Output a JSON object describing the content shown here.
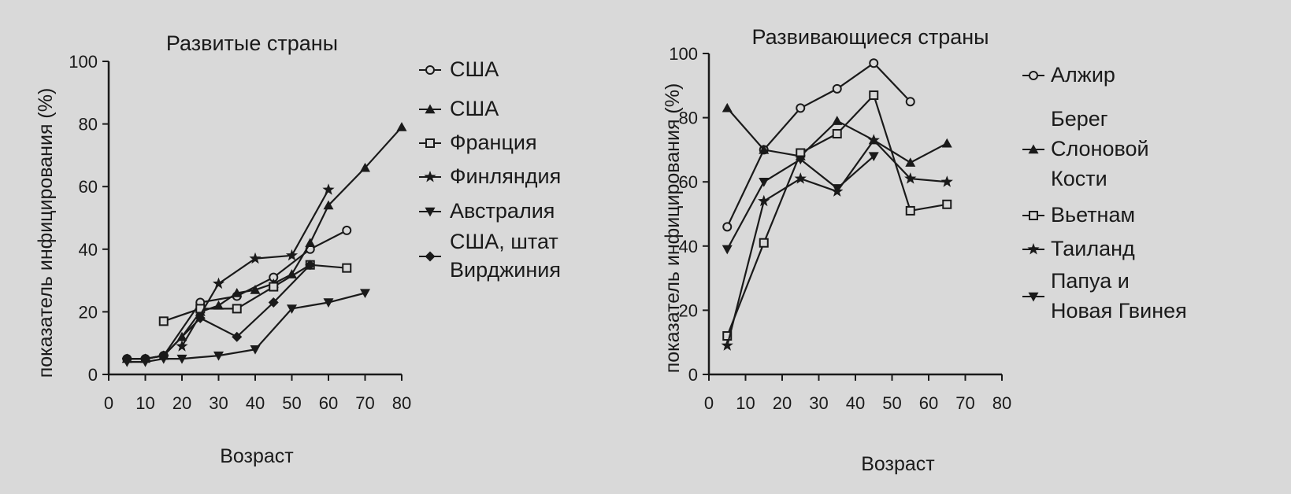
{
  "chart_data": [
    {
      "type": "line",
      "title": "Развитые страны",
      "xlabel": "Возраст",
      "ylabel": "показатель инфицирования (%)",
      "xlim": [
        0,
        80
      ],
      "ylim": [
        0,
        100
      ],
      "x_ticks": [
        0,
        10,
        20,
        30,
        40,
        50,
        60,
        70,
        80
      ],
      "y_ticks": [
        0,
        20,
        40,
        60,
        80,
        100
      ],
      "grid": false,
      "legend_position": "right",
      "series": [
        {
          "name": "США",
          "marker": "circle",
          "x": [
            5,
            10,
            15,
            25,
            35,
            45,
            55,
            65
          ],
          "y": [
            5,
            5,
            6,
            23,
            25,
            31,
            40,
            46
          ]
        },
        {
          "name": "США",
          "marker": "triangle-up",
          "x": [
            5,
            10,
            15,
            20,
            25,
            30,
            35,
            40,
            45,
            50,
            55,
            60,
            70,
            80
          ],
          "y": [
            5,
            5,
            6,
            12,
            20,
            22,
            26,
            27,
            29,
            32,
            42,
            54,
            66,
            79
          ]
        },
        {
          "name": "Франция",
          "marker": "square",
          "x": [
            15,
            25,
            35,
            45,
            55,
            65
          ],
          "y": [
            17,
            21,
            21,
            28,
            35,
            34
          ]
        },
        {
          "name": "Финляндия",
          "marker": "star",
          "x": [
            20,
            30,
            40,
            50,
            60
          ],
          "y": [
            9,
            29,
            37,
            38,
            59
          ]
        },
        {
          "name": "Австралия",
          "marker": "triangle-down",
          "x": [
            5,
            10,
            15,
            20,
            30,
            40,
            50,
            60,
            70
          ],
          "y": [
            4,
            4,
            5,
            5,
            6,
            8,
            21,
            23,
            26
          ]
        },
        {
          "name": "США, штат Вирджиния",
          "marker": "diamond",
          "x": [
            5,
            10,
            15,
            25,
            35,
            45,
            55
          ],
          "y": [
            5,
            5,
            6,
            18,
            12,
            23,
            35
          ]
        }
      ]
    },
    {
      "type": "line",
      "title": "Развивающиеся страны",
      "xlabel": "Возраст",
      "ylabel": "показатель инфицирования (%)",
      "xlim": [
        0,
        80
      ],
      "ylim": [
        0,
        100
      ],
      "x_ticks": [
        0,
        10,
        20,
        30,
        40,
        50,
        60,
        70,
        80
      ],
      "y_ticks": [
        0,
        20,
        40,
        60,
        80,
        100
      ],
      "grid": false,
      "legend_position": "right",
      "series": [
        {
          "name": "Алжир",
          "marker": "circle",
          "x": [
            5,
            15,
            25,
            35,
            45,
            55
          ],
          "y": [
            46,
            70,
            83,
            89,
            97,
            85
          ]
        },
        {
          "name": "Берег Слоновой Кости",
          "marker": "triangle-up",
          "x": [
            5,
            15,
            25,
            35,
            45,
            55,
            65
          ],
          "y": [
            83,
            70,
            68,
            79,
            73,
            66,
            72
          ]
        },
        {
          "name": "Вьетнам",
          "marker": "square",
          "x": [
            5,
            15,
            25,
            35,
            45,
            55,
            65
          ],
          "y": [
            12,
            41,
            69,
            75,
            87,
            51,
            53
          ]
        },
        {
          "name": "Таиланд",
          "marker": "star",
          "x": [
            5,
            15,
            25,
            35,
            45,
            55,
            65
          ],
          "y": [
            9,
            54,
            61,
            57,
            73,
            61,
            60
          ]
        },
        {
          "name": "Папуа и Новая Гвинея",
          "marker": "triangle-down",
          "x": [
            5,
            15,
            25,
            35,
            45
          ],
          "y": [
            39,
            60,
            67,
            58,
            68
          ]
        }
      ]
    }
  ],
  "legends": [
    {
      "entries": [
        {
          "marker": "circle",
          "lines": [
            "США"
          ]
        },
        {
          "marker": "triangle-up",
          "lines": [
            "США"
          ]
        },
        {
          "marker": "square",
          "lines": [
            "Франция"
          ]
        },
        {
          "marker": "star",
          "lines": [
            "Финляндия"
          ]
        },
        {
          "marker": "triangle-down",
          "lines": [
            "Австралия"
          ]
        },
        {
          "marker": "diamond",
          "lines": [
            "США, штат",
            "Вирджиния"
          ]
        }
      ]
    },
    {
      "entries": [
        {
          "marker": "circle",
          "lines": [
            "Алжир"
          ]
        },
        {
          "marker": "triangle-up",
          "lines": [
            "Берег",
            "Слоновой",
            "Кости"
          ]
        },
        {
          "marker": "square",
          "lines": [
            "Вьетнам"
          ]
        },
        {
          "marker": "star",
          "lines": [
            "Таиланд"
          ]
        },
        {
          "marker": "triangle-down",
          "lines": [
            "Папуа и",
            "Новая Гвинея"
          ]
        }
      ]
    }
  ]
}
